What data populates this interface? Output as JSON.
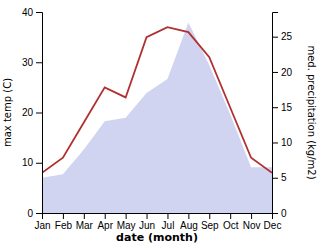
{
  "chart_data": {
    "type": "line",
    "xlabel": "date (month)",
    "ylabel": "max temp (C)",
    "y2label": "med. precipitation (kg/m2)",
    "categories": [
      "Jan",
      "Feb",
      "Mar",
      "Apr",
      "May",
      "Jun",
      "Jul",
      "Aug",
      "Sep",
      "Oct",
      "Nov",
      "Dec"
    ],
    "series": [
      {
        "type": "area",
        "axis": "y2",
        "color": "#b0b8e8",
        "values": [
          5,
          5.5,
          9,
          13,
          13.5,
          17,
          19,
          27,
          21,
          14,
          6.5,
          6.5
        ]
      },
      {
        "type": "line",
        "color": "#b03030",
        "values": [
          8,
          11,
          18,
          25,
          23,
          35,
          37,
          36,
          31,
          21,
          11,
          8
        ]
      }
    ],
    "ylim": [
      0,
      40
    ],
    "yticks": [
      0,
      10,
      20,
      30,
      40
    ],
    "y2lim": [
      0,
      28.5
    ],
    "y2ticks": [
      0,
      5,
      10,
      15,
      20,
      25
    ]
  }
}
